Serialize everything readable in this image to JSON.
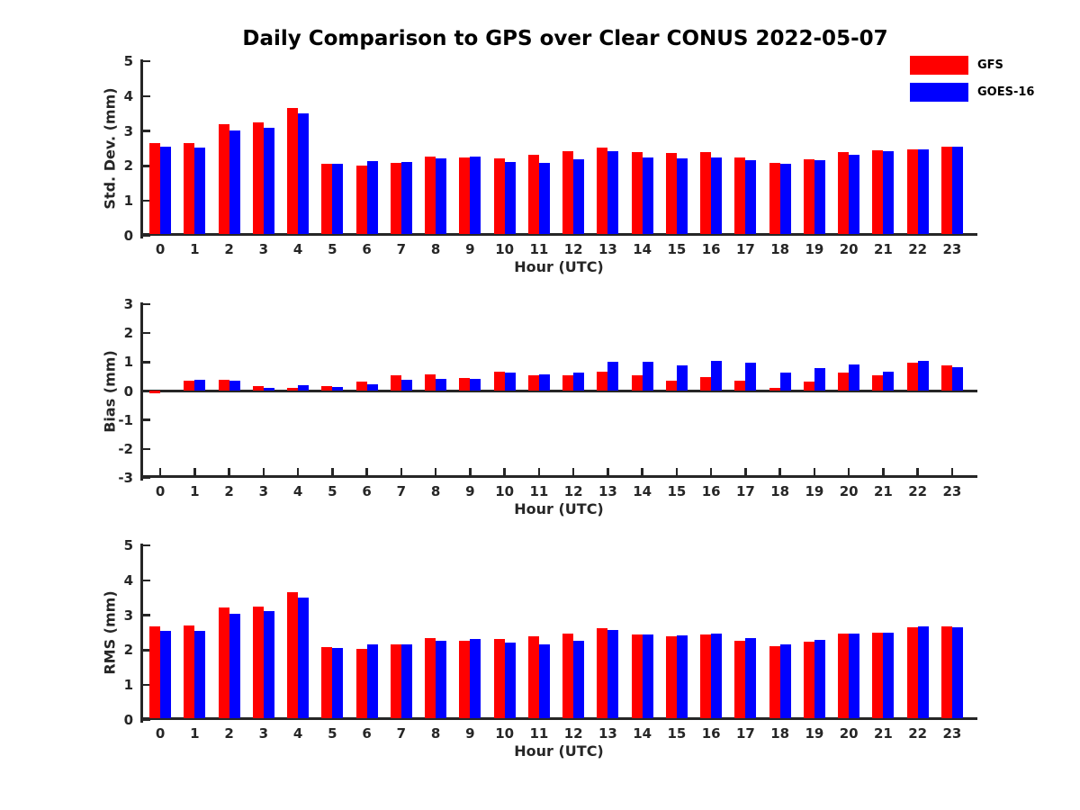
{
  "title": "Daily Comparison to GPS over Clear CONUS 2022-05-07",
  "colors": {
    "gfs": "#ff0000",
    "goes16": "#0000ff",
    "axis": "#262626",
    "background": "#ffffff"
  },
  "legend": {
    "position": "top-right",
    "items": [
      {
        "label": "GFS",
        "color": "#ff0000"
      },
      {
        "label": "GOES-16",
        "color": "#0000ff"
      }
    ]
  },
  "chart_data": [
    {
      "type": "bar",
      "name": "std-dev",
      "ylabel": "Std. Dev. (mm)",
      "xlabel": "Hour (UTC)",
      "ylim": [
        0,
        5
      ],
      "yticks": [
        0,
        1,
        2,
        3,
        4,
        5
      ],
      "grid": false,
      "categories": [
        0,
        1,
        2,
        3,
        4,
        5,
        6,
        7,
        8,
        9,
        10,
        11,
        12,
        13,
        14,
        15,
        16,
        17,
        18,
        19,
        20,
        21,
        22,
        23
      ],
      "series": [
        {
          "name": "GFS",
          "color": "#ff0000",
          "values": [
            2.65,
            2.65,
            3.2,
            3.25,
            3.65,
            2.07,
            2.02,
            2.1,
            2.27,
            2.24,
            2.22,
            2.33,
            2.43,
            2.52,
            2.4,
            2.38,
            2.4,
            2.25,
            2.08,
            2.2,
            2.4,
            2.45,
            2.48,
            2.55
          ]
        },
        {
          "name": "GOES-16",
          "color": "#0000ff",
          "values": [
            2.55,
            2.52,
            3.02,
            3.1,
            3.5,
            2.05,
            2.15,
            2.12,
            2.22,
            2.28,
            2.12,
            2.1,
            2.18,
            2.42,
            2.25,
            2.22,
            2.25,
            2.17,
            2.05,
            2.17,
            2.33,
            2.43,
            2.47,
            2.55
          ]
        }
      ]
    },
    {
      "type": "bar",
      "name": "bias",
      "ylabel": "Bias (mm)",
      "xlabel": "Hour (UTC)",
      "ylim": [
        -3,
        3
      ],
      "yticks": [
        3,
        2,
        1,
        0,
        -1,
        -2,
        -3
      ],
      "grid": false,
      "categories": [
        0,
        1,
        2,
        3,
        4,
        5,
        6,
        7,
        8,
        9,
        10,
        11,
        12,
        13,
        14,
        15,
        16,
        17,
        18,
        19,
        20,
        21,
        22,
        23
      ],
      "series": [
        {
          "name": "GFS",
          "color": "#ff0000",
          "values": [
            -0.04,
            0.37,
            0.4,
            0.17,
            0.11,
            0.16,
            0.32,
            0.55,
            0.58,
            0.46,
            0.68,
            0.53,
            0.53,
            0.68,
            0.55,
            0.35,
            0.48,
            0.36,
            0.12,
            0.32,
            0.64,
            0.55,
            0.97,
            0.88
          ]
        },
        {
          "name": "GOES-16",
          "color": "#0000ff",
          "values": [
            0.0,
            0.4,
            0.37,
            0.11,
            0.2,
            0.13,
            0.24,
            0.38,
            0.41,
            0.42,
            0.64,
            0.57,
            0.64,
            1.0,
            1.0,
            0.88,
            1.05,
            0.99,
            0.63,
            0.8,
            0.91,
            0.68,
            1.04,
            0.83
          ]
        }
      ]
    },
    {
      "type": "bar",
      "name": "rms",
      "ylabel": "RMS (mm)",
      "xlabel": "Hour (UTC)",
      "ylim": [
        0,
        5
      ],
      "yticks": [
        0,
        1,
        2,
        3,
        4,
        5
      ],
      "grid": false,
      "categories": [
        0,
        1,
        2,
        3,
        4,
        5,
        6,
        7,
        8,
        9,
        10,
        11,
        12,
        13,
        14,
        15,
        16,
        17,
        18,
        19,
        20,
        21,
        22,
        23
      ],
      "series": [
        {
          "name": "GFS",
          "color": "#ff0000",
          "values": [
            2.68,
            2.7,
            3.22,
            3.25,
            3.67,
            2.1,
            2.04,
            2.17,
            2.35,
            2.27,
            2.32,
            2.4,
            2.48,
            2.63,
            2.45,
            2.4,
            2.45,
            2.27,
            2.11,
            2.25,
            2.47,
            2.51,
            2.65,
            2.69
          ]
        },
        {
          "name": "GOES-16",
          "color": "#0000ff",
          "values": [
            2.56,
            2.55,
            3.04,
            3.12,
            3.5,
            2.06,
            2.17,
            2.17,
            2.28,
            2.33,
            2.21,
            2.17,
            2.27,
            2.57,
            2.45,
            2.41,
            2.48,
            2.35,
            2.16,
            2.3,
            2.48,
            2.51,
            2.68,
            2.66
          ]
        }
      ]
    }
  ]
}
